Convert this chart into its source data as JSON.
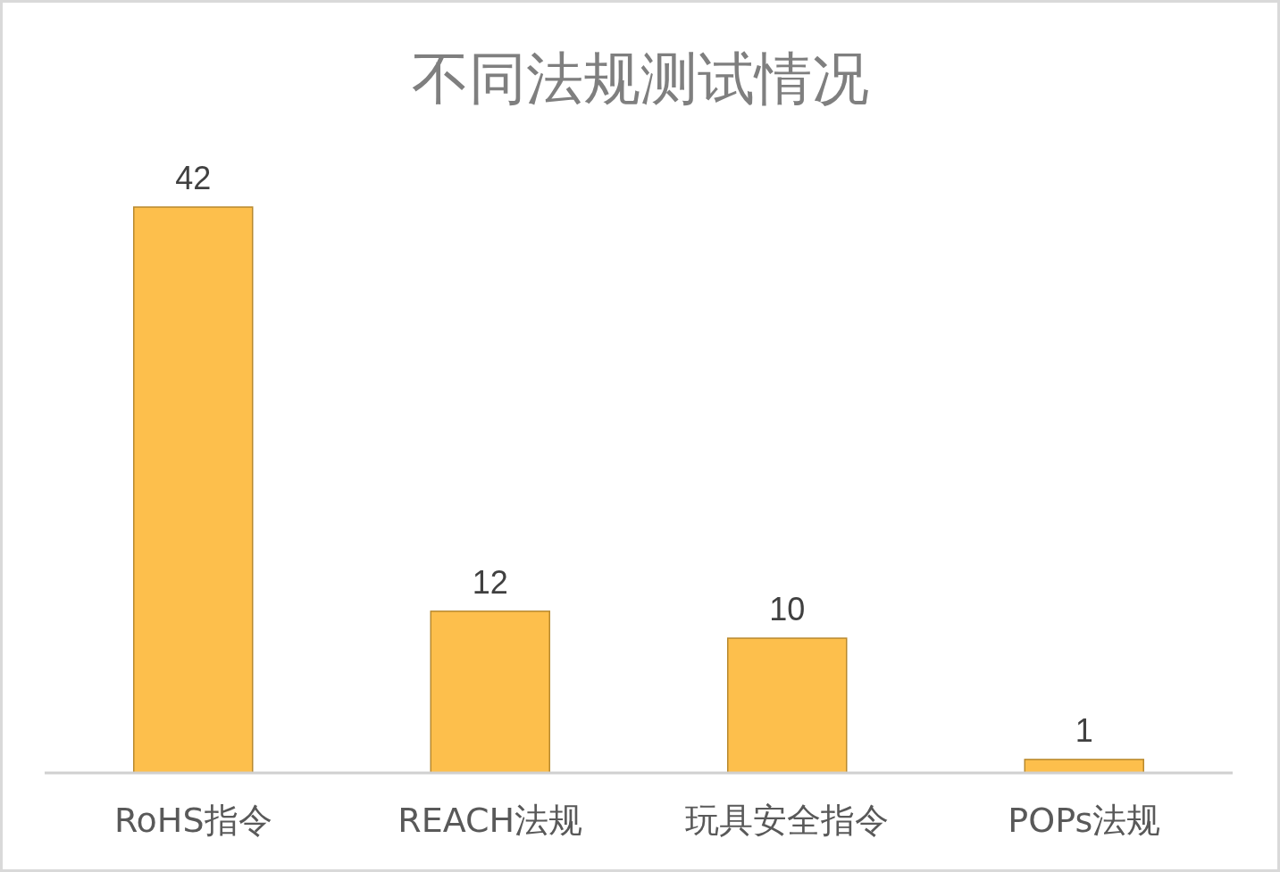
{
  "chart_data": {
    "type": "bar",
    "title": "不同法规测试情况",
    "categories": [
      "RoHS指令",
      "REACH法规",
      "玩具安全指令",
      "POPs法规"
    ],
    "values": [
      42,
      12,
      10,
      1
    ],
    "color": "#fdbf4c",
    "data_labels": true
  }
}
